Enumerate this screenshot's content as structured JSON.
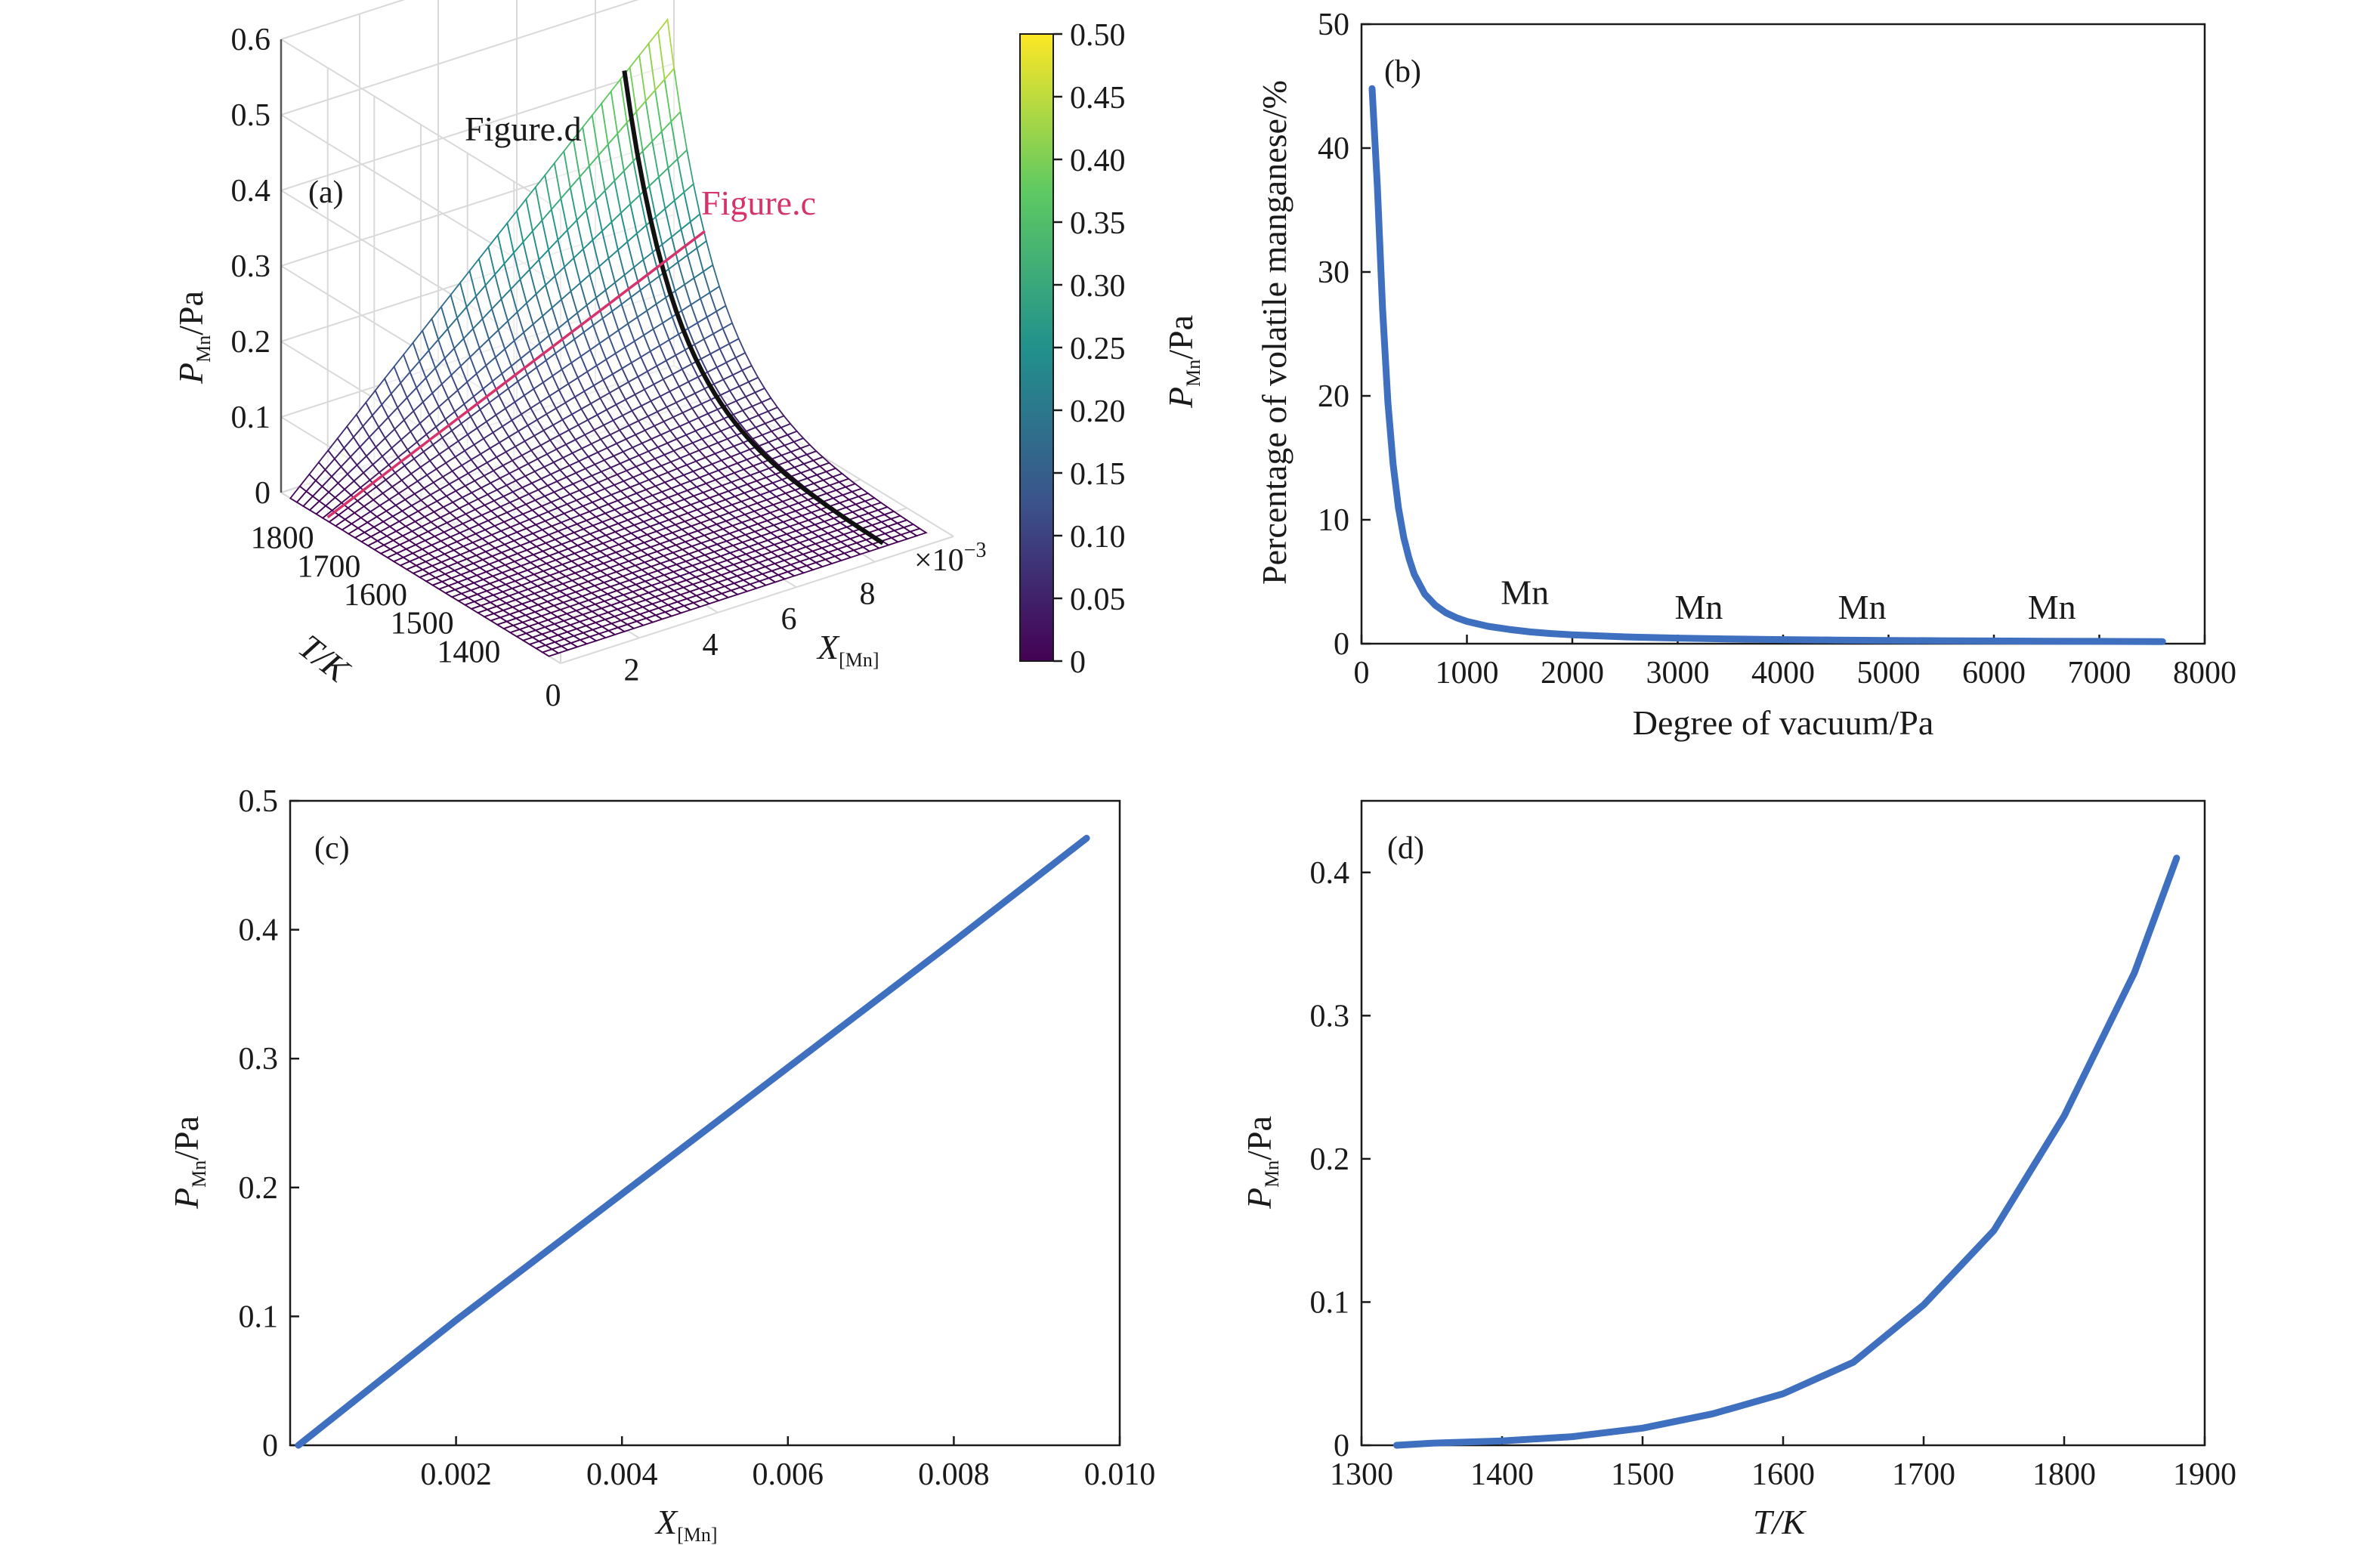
{
  "chart_data": [
    {
      "panel": "(a)",
      "type": "surface3d",
      "xlabel": {
        "main": "X",
        "sub": "[Mn]"
      },
      "ylabel": "T/K",
      "zlabel": {
        "main": "P",
        "sub": "Mn",
        "unit": "/Pa"
      },
      "x_ticks": [
        "0",
        "2",
        "4",
        "6",
        "8"
      ],
      "x_multiplier": "×10",
      "x_multiplier_exp": "−3",
      "y_ticks": [
        "1400",
        "1500",
        "1600",
        "1700",
        "1800"
      ],
      "z_ticks": [
        "0",
        "0.1",
        "0.2",
        "0.3",
        "0.4",
        "0.5",
        "0.6"
      ],
      "xlim": [
        0,
        0.01
      ],
      "ylim": [
        1300,
        1900
      ],
      "zlim": [
        0,
        0.6
      ],
      "annotations": [
        {
          "text": "Figure.d",
          "color": "#1a1a1a"
        },
        {
          "text": "Figure.c",
          "color": "#d6336c"
        }
      ],
      "colorbar": {
        "label": {
          "main": "P",
          "sub": "Mn",
          "unit": "/Pa"
        },
        "ticks": [
          "0",
          "0.05",
          "0.10",
          "0.15",
          "0.20",
          "0.25",
          "0.30",
          "0.35",
          "0.40",
          "0.45",
          "0.50"
        ],
        "range": [
          0,
          0.5
        ],
        "colormap": [
          "#440154",
          "#3b528b",
          "#21918c",
          "#5ec962",
          "#fde725"
        ]
      },
      "grid": true
    },
    {
      "panel": "(b)",
      "type": "line",
      "xlabel": "Degree of vacuum/Pa",
      "ylabel": "Percentage of volatile manganese/%",
      "xlim": [
        0,
        8000
      ],
      "ylim": [
        0,
        50
      ],
      "x_ticks": [
        "0",
        "1000",
        "2000",
        "3000",
        "4000",
        "5000",
        "6000",
        "7000",
        "8000"
      ],
      "y_ticks": [
        "0",
        "10",
        "20",
        "30",
        "40",
        "50"
      ],
      "series": [
        {
          "color": "#3f6fbf",
          "x": [
            100,
            150,
            200,
            250,
            300,
            350,
            400,
            450,
            500,
            600,
            700,
            800,
            900,
            1000,
            1200,
            1400,
            1600,
            1800,
            2000,
            2500,
            3000,
            3500,
            4000,
            4500,
            5000,
            5500,
            6000,
            6500,
            7000,
            7600
          ],
          "y": [
            44.8,
            37.0,
            27.0,
            19.5,
            14.5,
            11.0,
            8.6,
            6.9,
            5.6,
            4.0,
            3.1,
            2.5,
            2.1,
            1.8,
            1.4,
            1.15,
            0.95,
            0.82,
            0.72,
            0.55,
            0.45,
            0.38,
            0.33,
            0.29,
            0.26,
            0.24,
            0.22,
            0.2,
            0.19,
            0.17
          ]
        }
      ],
      "annotations": [
        {
          "text": "Mn",
          "x": 1550,
          "y": 3.2
        },
        {
          "text": "Mn",
          "x": 3200,
          "y": 2.0
        },
        {
          "text": "Mn",
          "x": 4750,
          "y": 2.0
        },
        {
          "text": "Mn",
          "x": 6550,
          "y": 2.0
        }
      ],
      "grid": false
    },
    {
      "panel": "(c)",
      "type": "line",
      "xlabel": {
        "main": "X",
        "sub": "[Mn]"
      },
      "ylabel": {
        "main": "P",
        "sub": "Mn",
        "unit": "/Pa"
      },
      "xlim": [
        0,
        0.01
      ],
      "ylim": [
        0,
        0.5
      ],
      "x_ticks": [
        0.002,
        0.004,
        0.006,
        0.008,
        0.01
      ],
      "x_tick_labels": [
        "0.002",
        "0.004",
        "0.006",
        "0.008",
        "0.010"
      ],
      "y_ticks": [
        0,
        0.1,
        0.2,
        0.3,
        0.4,
        0.5
      ],
      "y_tick_labels": [
        "0",
        "0.1",
        "0.2",
        "0.3",
        "0.4",
        "0.5"
      ],
      "series": [
        {
          "color": "#3f6fbf",
          "x": [
            0.0001,
            0.002,
            0.004,
            0.006,
            0.008,
            0.0096
          ],
          "y": [
            0.0,
            0.097,
            0.195,
            0.293,
            0.391,
            0.471
          ]
        }
      ],
      "grid": false
    },
    {
      "panel": "(d)",
      "type": "line",
      "xlabel": "T/K",
      "ylabel": {
        "main": "P",
        "sub": "Mn",
        "unit": "/Pa"
      },
      "xlim": [
        1300,
        1900
      ],
      "ylim": [
        0,
        0.45
      ],
      "x_ticks": [
        1300,
        1400,
        1500,
        1600,
        1700,
        1800,
        1900
      ],
      "x_tick_labels": [
        "1300",
        "1400",
        "1500",
        "1600",
        "1700",
        "1800",
        "1900"
      ],
      "y_ticks": [
        0,
        0.1,
        0.2,
        0.3,
        0.4
      ],
      "y_tick_labels": [
        "0",
        "0.1",
        "0.2",
        "0.3",
        "0.4"
      ],
      "series": [
        {
          "color": "#3f6fbf",
          "x": [
            1325,
            1350,
            1400,
            1450,
            1500,
            1550,
            1600,
            1650,
            1700,
            1750,
            1800,
            1850,
            1880
          ],
          "y": [
            0.0,
            0.0015,
            0.003,
            0.006,
            0.012,
            0.022,
            0.036,
            0.058,
            0.098,
            0.15,
            0.23,
            0.33,
            0.41
          ]
        }
      ],
      "grid": false
    }
  ]
}
